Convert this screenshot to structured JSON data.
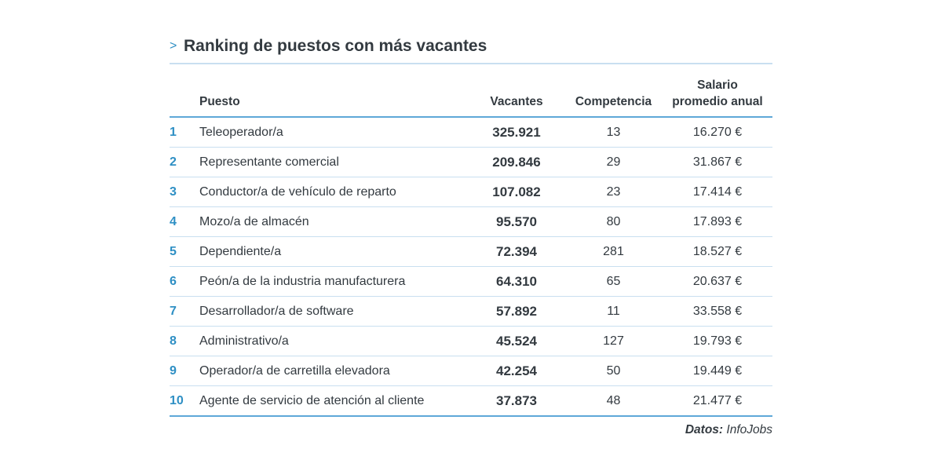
{
  "title": "Ranking de puestos con más vacantes",
  "caret": ">",
  "source": {
    "label": "Datos:",
    "name": "InfoJobs"
  },
  "chart_data": {
    "type": "table",
    "title": "Ranking de puestos con más vacantes",
    "columns": [
      "",
      "Puesto",
      "Vacantes",
      "Competencia",
      "Salario promedio anual"
    ],
    "header": {
      "puesto": "Puesto",
      "vacantes": "Vacantes",
      "competencia": "Competencia",
      "salario_l1": "Salario",
      "salario_l2": "promedio anual"
    },
    "rows": [
      {
        "rank": "1",
        "puesto": "Teleoperador/a",
        "vacantes": "325.921",
        "competencia": "13",
        "salario": "16.270 €"
      },
      {
        "rank": "2",
        "puesto": "Representante comercial",
        "vacantes": "209.846",
        "competencia": "29",
        "salario": "31.867 €"
      },
      {
        "rank": "3",
        "puesto": "Conductor/a de vehículo de reparto",
        "vacantes": "107.082",
        "competencia": "23",
        "salario": "17.414 €"
      },
      {
        "rank": "4",
        "puesto": "Mozo/a de almacén",
        "vacantes": "95.570",
        "competencia": "80",
        "salario": "17.893 €"
      },
      {
        "rank": "5",
        "puesto": "Dependiente/a",
        "vacantes": "72.394",
        "competencia": "281",
        "salario": "18.527 €"
      },
      {
        "rank": "6",
        "puesto": "Peón/a de la industria manufacturera",
        "vacantes": "64.310",
        "competencia": "65",
        "salario": "20.637 €"
      },
      {
        "rank": "7",
        "puesto": "Desarrollador/a de software",
        "vacantes": "57.892",
        "competencia": "11",
        "salario": "33.558 €"
      },
      {
        "rank": "8",
        "puesto": "Administrativo/a",
        "vacantes": "45.524",
        "competencia": "127",
        "salario": "19.793 €"
      },
      {
        "rank": "9",
        "puesto": "Operador/a de carretilla elevadora",
        "vacantes": "42.254",
        "competencia": "50",
        "salario": "19.449 €"
      },
      {
        "rank": "10",
        "puesto": "Agente de servicio de atención al cliente",
        "vacantes": "37.873",
        "competencia": "48",
        "salario": "21.477 €"
      }
    ]
  }
}
